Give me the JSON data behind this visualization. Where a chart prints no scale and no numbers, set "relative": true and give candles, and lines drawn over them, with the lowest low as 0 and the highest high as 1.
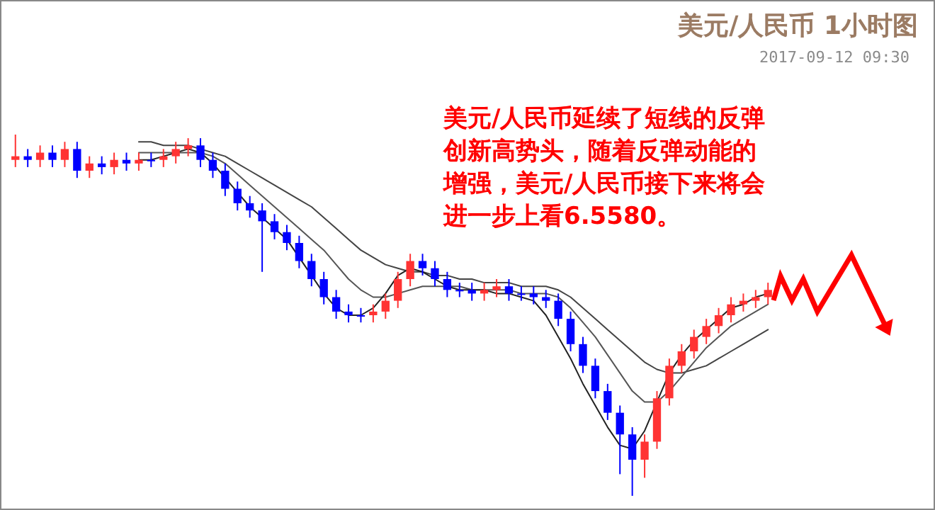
{
  "chart_data": {
    "type": "candlestick",
    "title": "美元/人民币 1小时图",
    "subtitle": "2017-09-12 09:30",
    "annotations": [
      "美元/人民币延续了短线的反弹创新高势头，随着反弹动能的增强，美元/人民币接下来将会进一步上看6.5580。"
    ],
    "relative": true,
    "categories": [
      null,
      null,
      null,
      null,
      null,
      null,
      null,
      null,
      null,
      null,
      null,
      null,
      null,
      null,
      null,
      null,
      null,
      null,
      null,
      null,
      null,
      null,
      null,
      null,
      null,
      null,
      null,
      null,
      null,
      null,
      null,
      null,
      null,
      null,
      null,
      null,
      null,
      null,
      null,
      null,
      null,
      null,
      null,
      null,
      null,
      null,
      null,
      null,
      null,
      null,
      null,
      null,
      null,
      null,
      null,
      null,
      null,
      null,
      null,
      null,
      null,
      null
    ],
    "ohlc": [
      [
        0.93,
        1.0,
        0.91,
        0.94
      ],
      [
        0.94,
        0.96,
        0.91,
        0.93
      ],
      [
        0.93,
        0.97,
        0.91,
        0.95
      ],
      [
        0.95,
        0.97,
        0.91,
        0.93
      ],
      [
        0.93,
        0.98,
        0.91,
        0.96
      ],
      [
        0.96,
        0.98,
        0.88,
        0.9
      ],
      [
        0.9,
        0.94,
        0.88,
        0.92
      ],
      [
        0.92,
        0.94,
        0.89,
        0.91
      ],
      [
        0.91,
        0.95,
        0.89,
        0.93
      ],
      [
        0.93,
        0.95,
        0.9,
        0.92
      ],
      [
        0.92,
        0.95,
        0.9,
        0.93
      ],
      [
        0.93,
        0.95,
        0.91,
        0.93
      ],
      [
        0.93,
        0.96,
        0.91,
        0.94
      ],
      [
        0.94,
        0.98,
        0.92,
        0.96
      ],
      [
        0.96,
        0.99,
        0.94,
        0.97
      ],
      [
        0.97,
        0.99,
        0.91,
        0.93
      ],
      [
        0.93,
        0.95,
        0.88,
        0.9
      ],
      [
        0.9,
        0.92,
        0.83,
        0.85
      ],
      [
        0.85,
        0.87,
        0.79,
        0.81
      ],
      [
        0.81,
        0.83,
        0.77,
        0.79
      ],
      [
        0.79,
        0.81,
        0.62,
        0.76
      ],
      [
        0.76,
        0.78,
        0.71,
        0.73
      ],
      [
        0.73,
        0.75,
        0.68,
        0.7
      ],
      [
        0.7,
        0.72,
        0.63,
        0.65
      ],
      [
        0.65,
        0.67,
        0.58,
        0.6
      ],
      [
        0.6,
        0.62,
        0.53,
        0.55
      ],
      [
        0.55,
        0.57,
        0.49,
        0.51
      ],
      [
        0.51,
        0.53,
        0.48,
        0.5
      ],
      [
        0.5,
        0.52,
        0.48,
        0.5
      ],
      [
        0.5,
        0.53,
        0.48,
        0.51
      ],
      [
        0.51,
        0.56,
        0.49,
        0.54
      ],
      [
        0.54,
        0.62,
        0.52,
        0.6
      ],
      [
        0.6,
        0.67,
        0.58,
        0.65
      ],
      [
        0.65,
        0.67,
        0.61,
        0.63
      ],
      [
        0.63,
        0.65,
        0.58,
        0.6
      ],
      [
        0.6,
        0.62,
        0.55,
        0.57
      ],
      [
        0.57,
        0.59,
        0.55,
        0.57
      ],
      [
        0.57,
        0.59,
        0.54,
        0.56
      ],
      [
        0.56,
        0.59,
        0.54,
        0.57
      ],
      [
        0.57,
        0.6,
        0.55,
        0.58
      ],
      [
        0.58,
        0.6,
        0.54,
        0.56
      ],
      [
        0.56,
        0.58,
        0.54,
        0.56
      ],
      [
        0.56,
        0.58,
        0.53,
        0.55
      ],
      [
        0.55,
        0.57,
        0.52,
        0.54
      ],
      [
        0.54,
        0.56,
        0.47,
        0.49
      ],
      [
        0.49,
        0.51,
        0.4,
        0.42
      ],
      [
        0.42,
        0.44,
        0.34,
        0.36
      ],
      [
        0.36,
        0.38,
        0.27,
        0.29
      ],
      [
        0.29,
        0.31,
        0.21,
        0.23
      ],
      [
        0.23,
        0.25,
        0.06,
        0.17
      ],
      [
        0.17,
        0.19,
        0,
        0.1
      ],
      [
        0.1,
        0.17,
        0.05,
        0.15
      ],
      [
        0.15,
        0.29,
        0.13,
        0.27
      ],
      [
        0.27,
        0.38,
        0.25,
        0.36
      ],
      [
        0.36,
        0.42,
        0.34,
        0.4
      ],
      [
        0.4,
        0.46,
        0.38,
        0.44
      ],
      [
        0.44,
        0.49,
        0.42,
        0.47
      ],
      [
        0.47,
        0.52,
        0.45,
        0.5
      ],
      [
        0.5,
        0.55,
        0.48,
        0.53
      ],
      [
        0.53,
        0.56,
        0.51,
        0.54
      ],
      [
        0.54,
        0.57,
        0.52,
        0.55
      ],
      [
        0.55,
        0.59,
        0.53,
        0.57
      ]
    ],
    "colors": [
      "#ff3333",
      "#0000ff",
      "#ff3333",
      "#0000ff",
      "#ff3333",
      "#0000ff",
      "#ff3333",
      "#0000ff",
      "#ff3333",
      "#0000ff",
      "#ff3333",
      "#0000ff",
      "#ff3333",
      "#ff3333",
      "#ff3333",
      "#0000ff",
      "#0000ff",
      "#0000ff",
      "#0000ff",
      "#0000ff",
      "#0000ff",
      "#0000ff",
      "#0000ff",
      "#0000ff",
      "#0000ff",
      "#0000ff",
      "#0000ff",
      "#0000ff",
      "#0000ff",
      "#ff3333",
      "#ff3333",
      "#ff3333",
      "#ff3333",
      "#0000ff",
      "#0000ff",
      "#0000ff",
      "#0000ff",
      "#0000ff",
      "#ff3333",
      "#ff3333",
      "#0000ff",
      "#0000ff",
      "#0000ff",
      "#0000ff",
      "#0000ff",
      "#0000ff",
      "#0000ff",
      "#0000ff",
      "#0000ff",
      "#0000ff",
      "#0000ff",
      "#ff3333",
      "#ff3333",
      "#ff3333",
      "#ff3333",
      "#ff3333",
      "#ff3333",
      "#ff3333",
      "#ff3333",
      "#ff3333",
      "#ff3333",
      "#ff3333"
    ],
    "series": [
      {
        "type": "line",
        "color": "#444444",
        "values": [
          null,
          null,
          null,
          null,
          null,
          null,
          null,
          null,
          null,
          null,
          0.98,
          0.98,
          0.97,
          0.97,
          0.97,
          0.96,
          0.95,
          0.94,
          0.92,
          0.9,
          0.88,
          0.86,
          0.84,
          0.82,
          0.8,
          0.77,
          0.74,
          0.71,
          0.68,
          0.66,
          0.64,
          0.63,
          0.62,
          0.62,
          0.61,
          0.61,
          0.6,
          0.6,
          0.59,
          0.59,
          0.59,
          0.58,
          0.58,
          0.58,
          0.57,
          0.55,
          0.52,
          0.49,
          0.46,
          0.43,
          0.4,
          0.37,
          0.35,
          0.34,
          0.34,
          0.35,
          0.36,
          0.38,
          0.4,
          0.42,
          0.44,
          0.46
        ]
      },
      {
        "type": "line",
        "color": "#555555",
        "values": [
          null,
          null,
          null,
          null,
          null,
          null,
          null,
          null,
          null,
          null,
          0.95,
          0.95,
          0.95,
          0.95,
          0.95,
          0.95,
          0.94,
          0.92,
          0.89,
          0.86,
          0.83,
          0.8,
          0.77,
          0.74,
          0.71,
          0.68,
          0.64,
          0.6,
          0.57,
          0.55,
          0.55,
          0.56,
          0.57,
          0.58,
          0.58,
          0.58,
          0.58,
          0.57,
          0.57,
          0.57,
          0.57,
          0.56,
          0.56,
          0.56,
          0.55,
          0.52,
          0.48,
          0.44,
          0.39,
          0.34,
          0.29,
          0.26,
          0.26,
          0.29,
          0.33,
          0.37,
          0.41,
          0.44,
          0.47,
          0.49,
          0.51,
          0.53
        ]
      },
      {
        "type": "line",
        "color": "#222222",
        "values": [
          null,
          null,
          null,
          null,
          null,
          null,
          null,
          null,
          null,
          null,
          0.93,
          0.93,
          0.94,
          0.95,
          0.96,
          0.95,
          0.92,
          0.88,
          0.84,
          0.8,
          0.77,
          0.74,
          0.71,
          0.66,
          0.61,
          0.56,
          0.52,
          0.5,
          0.5,
          0.52,
          0.56,
          0.61,
          0.63,
          0.62,
          0.6,
          0.58,
          0.57,
          0.57,
          0.57,
          0.56,
          0.56,
          0.55,
          0.54,
          0.5,
          0.44,
          0.38,
          0.31,
          0.25,
          0.19,
          0.14,
          0.13,
          0.18,
          0.26,
          0.34,
          0.39,
          0.43,
          0.46,
          0.49,
          0.52,
          0.53,
          0.55,
          0.56
        ]
      }
    ]
  }
}
